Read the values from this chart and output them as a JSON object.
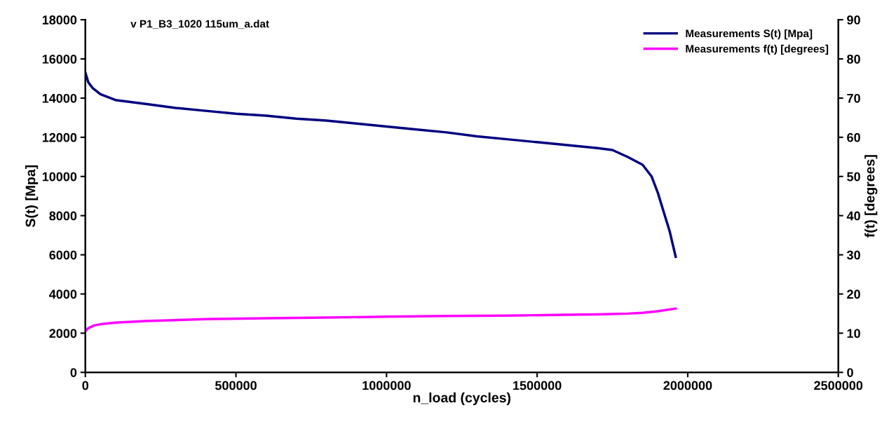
{
  "chart_data": {
    "type": "line",
    "title": "v P1_B3_1020 115um_a.dat",
    "xlabel": "n_load (cycles)",
    "ylabel": "S(t) [Mpa]",
    "y2label": "f(t) [degrees]",
    "xlim": [
      0,
      2500000
    ],
    "xticks": [
      0,
      500000,
      1000000,
      1500000,
      2000000,
      2500000
    ],
    "ylim": [
      0,
      18000
    ],
    "yticks": [
      0,
      2000,
      4000,
      6000,
      8000,
      10000,
      12000,
      14000,
      16000,
      18000
    ],
    "y2lim": [
      0,
      90
    ],
    "y2ticks": [
      0,
      10,
      20,
      30,
      40,
      50,
      60,
      70,
      80,
      90
    ],
    "grid": false,
    "legend": "top right",
    "marker": "none",
    "line_style": "solid",
    "series": [
      {
        "name": "Measurements S(t) [Mpa]",
        "color": "#000080",
        "x": [
          0,
          10000,
          25000,
          50000,
          100000,
          200000,
          300000,
          400000,
          500000,
          600000,
          700000,
          800000,
          900000,
          1000000,
          1100000,
          1200000,
          1300000,
          1400000,
          1500000,
          1600000,
          1700000,
          1750000,
          1800000,
          1850000,
          1880000,
          1900000,
          1920000,
          1940000,
          1960000
        ],
        "values": [
          15300,
          14800,
          14500,
          14200,
          13900,
          13700,
          13500,
          13350,
          13200,
          13100,
          12950,
          12850,
          12700,
          12550,
          12400,
          12250,
          12050,
          11900,
          11750,
          11600,
          11450,
          11350,
          11000,
          10600,
          10000,
          9200,
          8200,
          7200,
          5900
        ]
      },
      {
        "name": "Measurements f(t) [degrees]",
        "color": "#ff00ff",
        "axis": "y2",
        "x": [
          0,
          10000,
          30000,
          60000,
          100000,
          200000,
          400000,
          600000,
          800000,
          1000000,
          1200000,
          1400000,
          1600000,
          1700000,
          1800000,
          1850000,
          1900000,
          1960000
        ],
        "values": [
          10.5,
          11.3,
          12,
          12.4,
          12.7,
          13.1,
          13.6,
          13.8,
          14,
          14.2,
          14.4,
          14.5,
          14.7,
          14.8,
          15,
          15.2,
          15.6,
          16.3
        ]
      }
    ]
  }
}
